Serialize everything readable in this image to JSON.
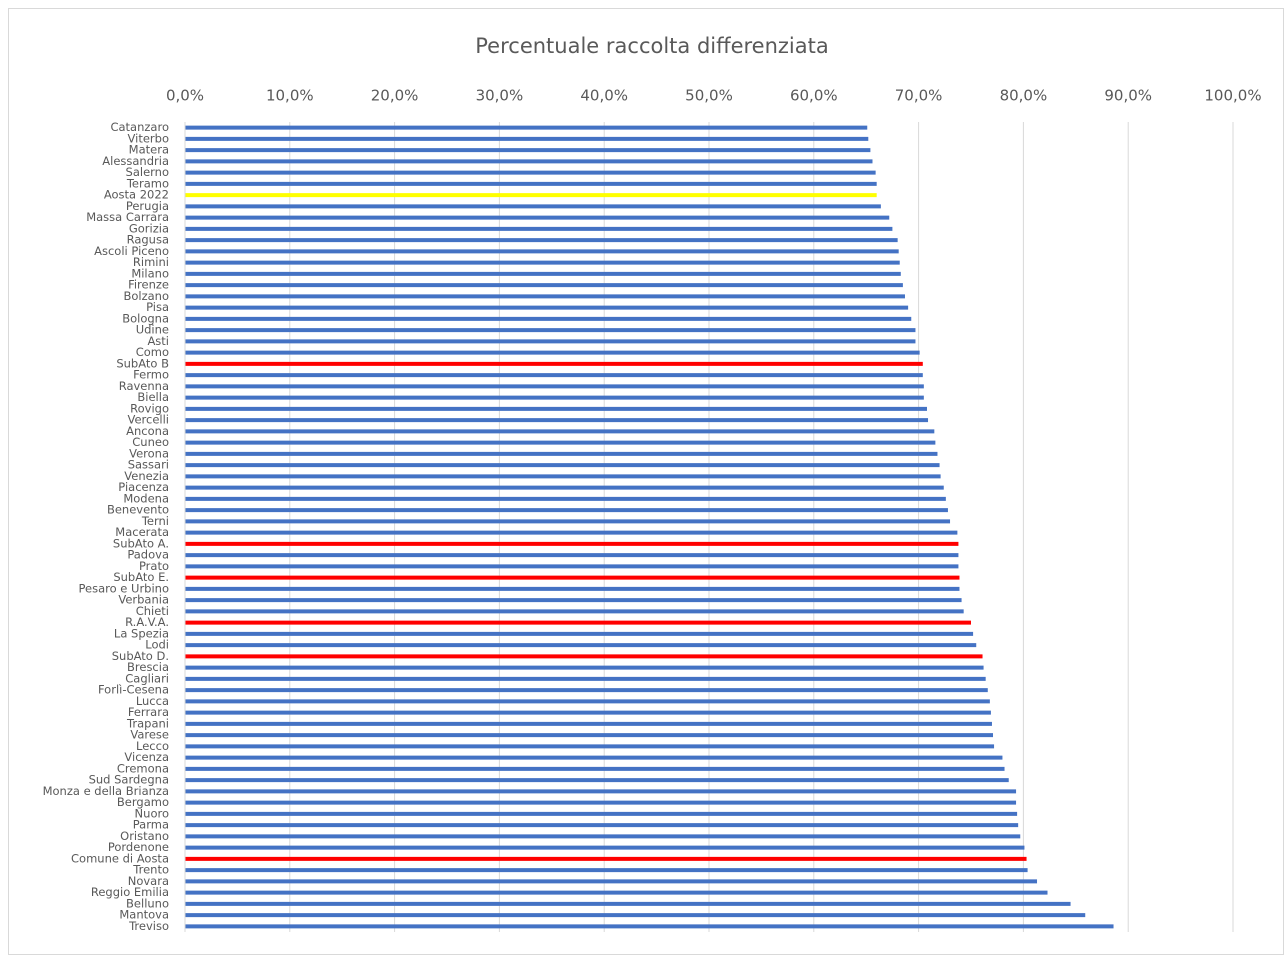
{
  "chart_data": {
    "type": "barh",
    "title": "Percentuale raccolta differenziata",
    "categories": [
      "Catanzaro",
      "Viterbo",
      "Matera",
      "Alessandria",
      "Salerno",
      "Teramo",
      "Aosta 2022",
      "Perugia",
      "Massa Carrara",
      "Gorizia",
      "Ragusa",
      "Ascoli Piceno",
      "Rimini",
      "Milano",
      "Firenze",
      "Bolzano",
      "Pisa",
      "Bologna",
      "Udine",
      "Asti",
      "Como",
      "SubAto B",
      "Fermo",
      "Ravenna",
      "Biella",
      "Rovigo",
      "Vercelli",
      "Ancona",
      "Cuneo",
      "Verona",
      "Sassari",
      "Venezia",
      "Piacenza",
      "Modena",
      "Benevento",
      "Terni",
      "Macerata",
      "SubAto A.",
      "Padova",
      "Prato",
      "SubAto E.",
      "Pesaro e Urbino",
      "Verbania",
      "Chieti",
      "R.A.V.A.",
      "La Spezia",
      "Lodi",
      "SubAto D.",
      "Brescia",
      "Cagliari",
      "Forlì-Cesena",
      "Lucca",
      "Ferrara",
      "Trapani",
      "Varese",
      "Lecco",
      "Vicenza",
      "Cremona",
      "Sud Sardegna",
      "Monza e della Brianza",
      "Bergamo",
      "Nuoro",
      "Parma",
      "Oristano",
      "Pordenone",
      "Comune di Aosta",
      "Trento",
      "Novara",
      "Reggio Emilia",
      "Belluno",
      "Mantova",
      "Treviso"
    ],
    "values": [
      65.1,
      65.2,
      65.4,
      65.6,
      65.9,
      66.0,
      66.0,
      66.4,
      67.2,
      67.5,
      68.0,
      68.1,
      68.2,
      68.3,
      68.5,
      68.7,
      69.0,
      69.3,
      69.7,
      69.7,
      70.1,
      70.4,
      70.4,
      70.5,
      70.5,
      70.8,
      70.9,
      71.5,
      71.6,
      71.8,
      72.0,
      72.1,
      72.4,
      72.6,
      72.8,
      73.0,
      73.7,
      73.8,
      73.8,
      73.8,
      73.9,
      73.9,
      74.1,
      74.3,
      75.0,
      75.2,
      75.5,
      76.1,
      76.2,
      76.4,
      76.6,
      76.8,
      76.9,
      77.0,
      77.1,
      77.2,
      78.0,
      78.2,
      78.6,
      79.3,
      79.3,
      79.4,
      79.5,
      79.7,
      80.1,
      80.3,
      80.4,
      81.3,
      82.3,
      84.5,
      85.9,
      88.6
    ],
    "colors": [
      "#4472c4",
      "#4472c4",
      "#4472c4",
      "#4472c4",
      "#4472c4",
      "#4472c4",
      "#ffff00",
      "#4472c4",
      "#4472c4",
      "#4472c4",
      "#4472c4",
      "#4472c4",
      "#4472c4",
      "#4472c4",
      "#4472c4",
      "#4472c4",
      "#4472c4",
      "#4472c4",
      "#4472c4",
      "#4472c4",
      "#4472c4",
      "#ff0000",
      "#4472c4",
      "#4472c4",
      "#4472c4",
      "#4472c4",
      "#4472c4",
      "#4472c4",
      "#4472c4",
      "#4472c4",
      "#4472c4",
      "#4472c4",
      "#4472c4",
      "#4472c4",
      "#4472c4",
      "#4472c4",
      "#4472c4",
      "#ff0000",
      "#4472c4",
      "#4472c4",
      "#ff0000",
      "#4472c4",
      "#4472c4",
      "#4472c4",
      "#ff0000",
      "#4472c4",
      "#4472c4",
      "#ff0000",
      "#4472c4",
      "#4472c4",
      "#4472c4",
      "#4472c4",
      "#4472c4",
      "#4472c4",
      "#4472c4",
      "#4472c4",
      "#4472c4",
      "#4472c4",
      "#4472c4",
      "#4472c4",
      "#4472c4",
      "#4472c4",
      "#4472c4",
      "#4472c4",
      "#4472c4",
      "#ff0000",
      "#4472c4",
      "#4472c4",
      "#4472c4",
      "#4472c4",
      "#4472c4",
      "#4472c4"
    ],
    "xlim": [
      0,
      100
    ],
    "xticks": [
      {
        "value": 0,
        "label": "0,0%"
      },
      {
        "value": 10,
        "label": "10,0%"
      },
      {
        "value": 20,
        "label": "20,0%"
      },
      {
        "value": 30,
        "label": "30,0%"
      },
      {
        "value": 40,
        "label": "40,0%"
      },
      {
        "value": 50,
        "label": "50,0%"
      },
      {
        "value": 60,
        "label": "60,0%"
      },
      {
        "value": 70,
        "label": "70,0%"
      },
      {
        "value": 80,
        "label": "80,0%"
      },
      {
        "value": 90,
        "label": "90,0%"
      },
      {
        "value": 100,
        "label": "100,0%"
      }
    ],
    "grid": true
  }
}
